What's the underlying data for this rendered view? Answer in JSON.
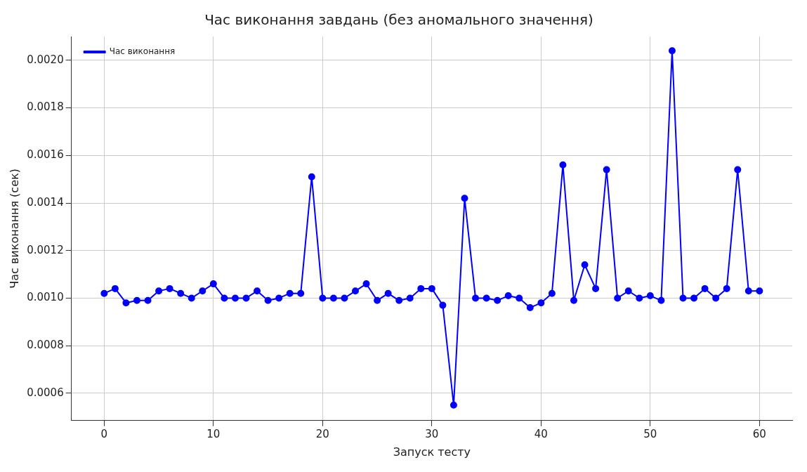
{
  "chart_data": {
    "type": "line",
    "title": "Час виконання завдань (без аномального значення)",
    "xlabel": "Запуск тесту",
    "ylabel": "Час виконання (сек)",
    "x": [
      0,
      1,
      2,
      3,
      4,
      5,
      6,
      7,
      8,
      9,
      10,
      11,
      12,
      13,
      14,
      15,
      16,
      17,
      18,
      19,
      20,
      21,
      22,
      23,
      24,
      25,
      26,
      27,
      28,
      29,
      30,
      31,
      32,
      33,
      34,
      35,
      36,
      37,
      38,
      39,
      40,
      41,
      42,
      43,
      44,
      45,
      46,
      47,
      48,
      49,
      50,
      51,
      52,
      53,
      54,
      55,
      56,
      57,
      58,
      59,
      60
    ],
    "series": [
      {
        "name": "Час виконання",
        "color": "#0000ff",
        "values": [
          0.00102,
          0.00104,
          0.00098,
          0.00099,
          0.00099,
          0.00103,
          0.00104,
          0.00102,
          0.001,
          0.00103,
          0.00106,
          0.001,
          0.001,
          0.001,
          0.00103,
          0.00099,
          0.001,
          0.00102,
          0.00102,
          0.00151,
          0.001,
          0.001,
          0.001,
          0.00103,
          0.00106,
          0.00099,
          0.00102,
          0.00099,
          0.001,
          0.00104,
          0.00104,
          0.00097,
          0.00055,
          0.00142,
          0.001,
          0.001,
          0.00099,
          0.00101,
          0.001,
          0.00096,
          0.00098,
          0.00102,
          0.00156,
          0.00099,
          0.00114,
          0.00104,
          0.00154,
          0.001,
          0.00103,
          0.001,
          0.00101,
          0.00099,
          0.00204,
          0.001,
          0.001,
          0.00104,
          0.001,
          0.00104,
          0.00154,
          0.00103,
          0.00103
        ]
      }
    ],
    "xlim": [
      -3,
      63
    ],
    "xticks": [
      0,
      10,
      20,
      30,
      40,
      50,
      60
    ],
    "ylim": [
      0.000485,
      0.0021
    ],
    "yticks": [
      {
        "value": 0.0006,
        "label": "0.0006"
      },
      {
        "value": 0.0008,
        "label": "0.0008"
      },
      {
        "value": 0.001,
        "label": "0.0010"
      },
      {
        "value": 0.0012,
        "label": "0.0012"
      },
      {
        "value": 0.0014,
        "label": "0.0014"
      },
      {
        "value": 0.0016,
        "label": "0.0016"
      },
      {
        "value": 0.0018,
        "label": "0.0018"
      },
      {
        "value": 0.002,
        "label": "0.0020"
      }
    ],
    "grid": true,
    "legend": "top left",
    "marker": "circle",
    "line_style": "solid"
  }
}
